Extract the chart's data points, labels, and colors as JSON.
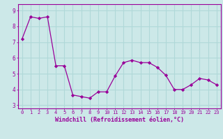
{
  "x": [
    0,
    1,
    2,
    3,
    4,
    5,
    6,
    7,
    8,
    9,
    10,
    11,
    12,
    13,
    14,
    15,
    16,
    17,
    18,
    19,
    20,
    21,
    22,
    23
  ],
  "y": [
    7.2,
    8.6,
    8.5,
    8.6,
    5.5,
    5.5,
    3.65,
    3.55,
    3.45,
    3.85,
    3.85,
    4.85,
    5.7,
    5.85,
    5.7,
    5.7,
    5.4,
    4.9,
    4.0,
    4.0,
    4.3,
    4.7,
    4.6,
    4.3
  ],
  "line_color": "#990099",
  "marker": "D",
  "marker_size": 2.2,
  "bg_color": "#cce8e8",
  "grid_color": "#b0d8d8",
  "xlabel": "Windchill (Refroidissement éolien,°C)",
  "ylabel_ticks": [
    3,
    4,
    5,
    6,
    7,
    8,
    9
  ],
  "xlim": [
    -0.5,
    23.5
  ],
  "ylim": [
    2.8,
    9.4
  ],
  "axis_label_color": "#990099",
  "tick_color": "#990099",
  "spine_color": "#990099",
  "font_family": "monospace",
  "xtick_fontsize": 5.0,
  "ytick_fontsize": 5.5,
  "xlabel_fontsize": 6.0
}
